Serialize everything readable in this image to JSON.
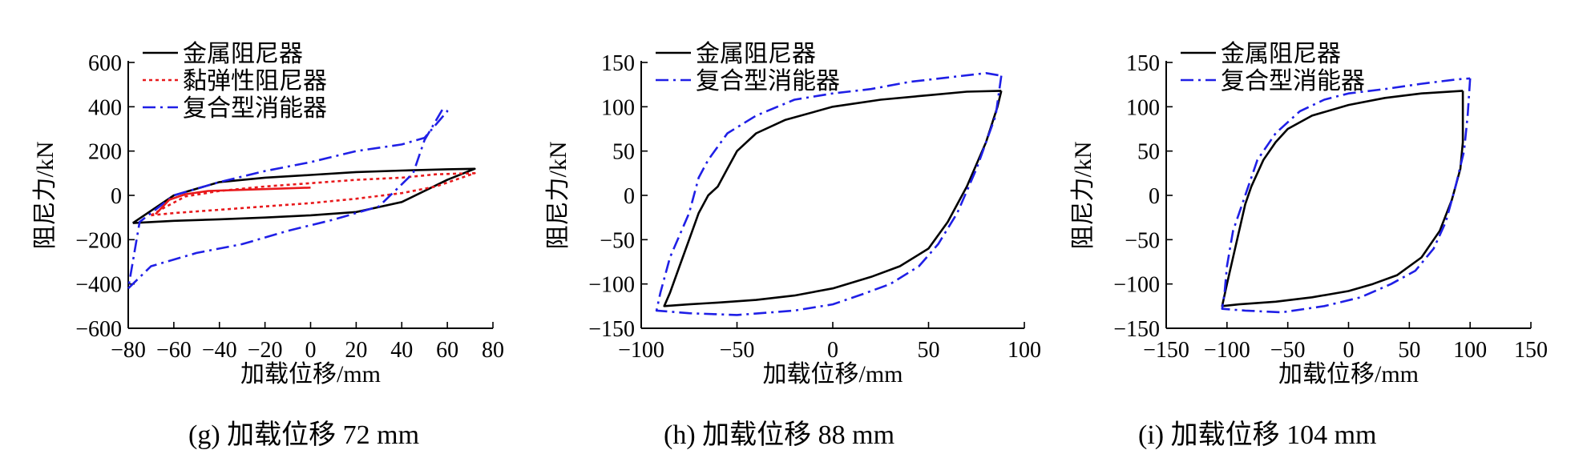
{
  "chart_data": [
    {
      "type": "line",
      "caption": "(g)  加载位移 72 mm",
      "xlabel": "加载位移/mm",
      "ylabel": "阻尼力/kN",
      "xlim": [
        -80,
        80
      ],
      "ylim": [
        -600,
        600
      ],
      "xticks": [
        "−80",
        "−60",
        "−40",
        "−20",
        "0",
        "20",
        "40",
        "60",
        "80"
      ],
      "yticks": [
        "600",
        "400",
        "200",
        "0",
        "−200",
        "−400",
        "−600"
      ],
      "legend_position": "top-left",
      "series": [
        {
          "name": "金属阻尼器",
          "color": "#000000",
          "dash": "solid",
          "x": [
            -78,
            -60,
            -40,
            -20,
            0,
            20,
            40,
            60,
            72,
            60,
            40,
            20,
            0,
            -20,
            -40,
            -60,
            -78
          ],
          "y": [
            -125,
            -115,
            -108,
            -100,
            -90,
            -75,
            -30,
            70,
            120,
            118,
            112,
            105,
            92,
            80,
            60,
            0,
            -125
          ]
        },
        {
          "name": "黏弹性阻尼器",
          "color": "#e8191c",
          "dash": "dotted",
          "x": [
            -70,
            -60,
            -40,
            -20,
            0,
            20,
            40,
            55,
            72,
            55,
            40,
            20,
            0,
            -20,
            -40,
            -55,
            -65,
            -70
          ],
          "y": [
            -90,
            -80,
            -65,
            -50,
            -35,
            -15,
            10,
            40,
            100,
            95,
            80,
            70,
            55,
            40,
            20,
            -5,
            -60,
            -90
          ]
        },
        {
          "name": "复合型消能器",
          "color": "#1f1fe6",
          "dash": "dashdot",
          "x": [
            -80,
            -70,
            -50,
            -30,
            -10,
            10,
            30,
            45,
            50,
            58,
            60,
            50,
            40,
            20,
            0,
            -20,
            -40,
            -60,
            -75,
            -80
          ],
          "y": [
            -420,
            -320,
            -260,
            -220,
            -160,
            -110,
            -50,
            100,
            250,
            390,
            380,
            260,
            230,
            200,
            150,
            110,
            60,
            0,
            -120,
            -420
          ]
        },
        {
          "name": "",
          "color": "#e8191c",
          "dash": "solid",
          "x": [
            -68,
            -62,
            -55,
            -45,
            -30,
            -15,
            0
          ],
          "y": [
            -85,
            -20,
            5,
            20,
            25,
            30,
            35
          ]
        }
      ]
    },
    {
      "type": "line",
      "caption": "(h)  加载位移 88 mm",
      "xlabel": "加载位移/mm",
      "ylabel": "阻尼力/kN",
      "xlim": [
        -100,
        100
      ],
      "ylim": [
        -150,
        150
      ],
      "xticks": [
        "−100",
        "−50",
        "0",
        "50",
        "100"
      ],
      "yticks": [
        "150",
        "100",
        "50",
        "0",
        "−50",
        "−100",
        "−150"
      ],
      "legend_position": "top-left",
      "series": [
        {
          "name": "金属阻尼器",
          "color": "#000000",
          "dash": "solid",
          "x": [
            88,
            86,
            80,
            70,
            60,
            50,
            35,
            20,
            0,
            -20,
            -40,
            -60,
            -75,
            -88,
            -85,
            -80,
            -75,
            -70,
            -65,
            -60,
            -55,
            -50,
            -40,
            -25,
            0,
            25,
            50,
            70,
            88
          ],
          "y": [
            118,
            100,
            60,
            10,
            -30,
            -60,
            -80,
            -92,
            -105,
            -113,
            -118,
            -121,
            -123,
            -125,
            -110,
            -80,
            -50,
            -20,
            0,
            10,
            30,
            50,
            70,
            85,
            100,
            108,
            113,
            117,
            118
          ]
        },
        {
          "name": "复合型消能器",
          "color": "#1f1fe6",
          "dash": "dashdot",
          "x": [
            88,
            85,
            75,
            65,
            55,
            45,
            30,
            15,
            0,
            -20,
            -50,
            -75,
            -92,
            -90,
            -85,
            -75,
            -70,
            -65,
            -55,
            -40,
            -20,
            0,
            20,
            40,
            60,
            80,
            88
          ],
          "y": [
            135,
            90,
            30,
            -20,
            -55,
            -80,
            -100,
            -112,
            -123,
            -130,
            -135,
            -133,
            -130,
            -110,
            -70,
            -20,
            20,
            40,
            70,
            90,
            108,
            115,
            120,
            128,
            133,
            138,
            135
          ]
        }
      ]
    },
    {
      "type": "line",
      "caption": "(i)  加载位移 104 mm",
      "xlabel": "加载位移/mm",
      "ylabel": "阻尼力/kN",
      "xlim": [
        -150,
        150
      ],
      "ylim": [
        -150,
        150
      ],
      "xticks": [
        "−150",
        "−100",
        "−50",
        "0",
        "50",
        "100",
        "150"
      ],
      "yticks": [
        "150",
        "100",
        "50",
        "0",
        "−50",
        "−100",
        "−150"
      ],
      "legend_position": "top-left",
      "series": [
        {
          "name": "金属阻尼器",
          "color": "#000000",
          "dash": "solid",
          "x": [
            94,
            94,
            92,
            85,
            75,
            60,
            40,
            20,
            0,
            -30,
            -60,
            -90,
            -104,
            -100,
            -95,
            -90,
            -85,
            -80,
            -70,
            -60,
            -50,
            -30,
            0,
            30,
            60,
            94
          ],
          "y": [
            118,
            60,
            30,
            -5,
            -40,
            -70,
            -90,
            -100,
            -108,
            -115,
            -120,
            -123,
            -125,
            -100,
            -70,
            -40,
            -10,
            10,
            40,
            60,
            75,
            90,
            102,
            110,
            115,
            118
          ]
        },
        {
          "name": "复合型消能器",
          "color": "#1f1fe6",
          "dash": "dashdot",
          "x": [
            100,
            98,
            95,
            88,
            80,
            70,
            55,
            35,
            10,
            -20,
            -55,
            -85,
            -104,
            -102,
            -100,
            -95,
            -85,
            -75,
            -60,
            -40,
            -20,
            0,
            30,
            60,
            90,
            100
          ],
          "y": [
            132,
            90,
            50,
            10,
            -30,
            -60,
            -85,
            -100,
            -115,
            -125,
            -132,
            -130,
            -128,
            -110,
            -80,
            -40,
            0,
            40,
            70,
            95,
            108,
            115,
            120,
            126,
            131,
            132
          ]
        }
      ]
    }
  ]
}
